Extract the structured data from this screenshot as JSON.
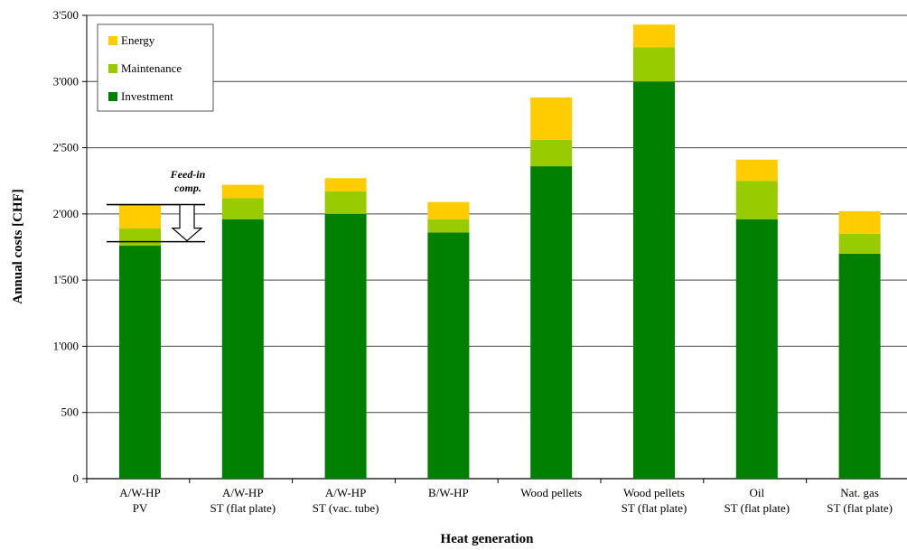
{
  "chart_data": {
    "type": "bar",
    "stacked": true,
    "xlabel": "Heat generation",
    "ylabel": "Annual costs [CHF]",
    "ylim": [
      0,
      3500
    ],
    "yticks": [
      {
        "value": 0,
        "label": "0"
      },
      {
        "value": 500,
        "label": "500"
      },
      {
        "value": 1000,
        "label": "1'000"
      },
      {
        "value": 1500,
        "label": "1'500"
      },
      {
        "value": 2000,
        "label": "2'000"
      },
      {
        "value": 2500,
        "label": "2'500"
      },
      {
        "value": 3000,
        "label": "3'000"
      },
      {
        "value": 3500,
        "label": "3'500"
      }
    ],
    "grid": true,
    "legend_position": "top-left",
    "categories": [
      [
        "A/W-HP",
        "PV"
      ],
      [
        "A/W-HP",
        "ST (flat plate)"
      ],
      [
        "A/W-HP",
        "ST (vac. tube)"
      ],
      [
        "B/W-HP"
      ],
      [
        "Wood pellets"
      ],
      [
        "Wood pellets",
        "ST (flat plate)"
      ],
      [
        "Oil",
        "ST (flat plate)"
      ],
      [
        "Nat. gas",
        "ST (flat plate)"
      ]
    ],
    "series": [
      {
        "name": "Investment",
        "color": "#008000",
        "values": [
          1760,
          1960,
          2000,
          1860,
          2360,
          3000,
          1960,
          1700
        ]
      },
      {
        "name": "Maintenance",
        "color": "#99cc00",
        "values": [
          130,
          160,
          170,
          100,
          200,
          260,
          290,
          150
        ]
      },
      {
        "name": "Energy",
        "color": "#ffcc00",
        "values": [
          180,
          100,
          100,
          130,
          320,
          170,
          160,
          170
        ]
      }
    ],
    "legend_order": [
      "Energy",
      "Maintenance",
      "Investment"
    ],
    "annotation": {
      "text": [
        "Feed-in",
        "comp."
      ],
      "upper_value": 2070,
      "lower_value": 1790
    }
  }
}
